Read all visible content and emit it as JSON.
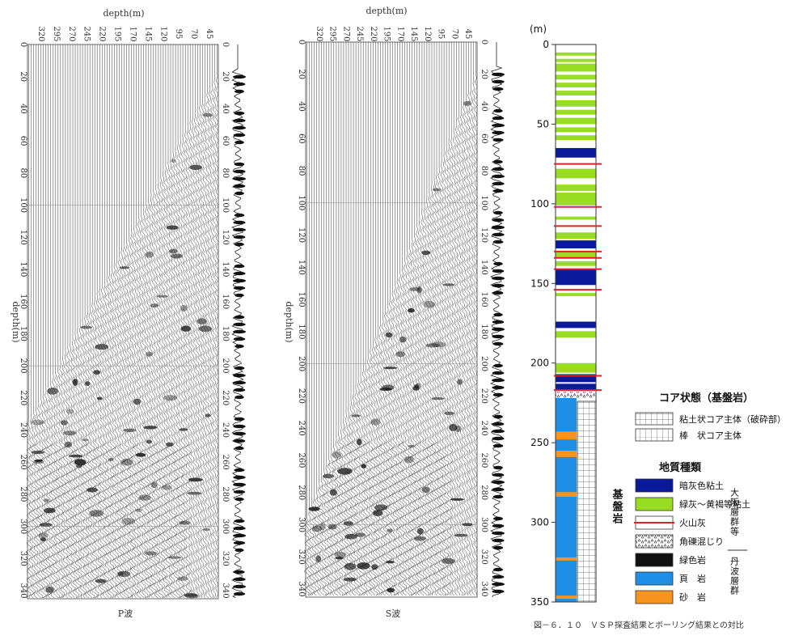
{
  "p_panel": {
    "top_axis_title": "depth(m)",
    "top_ticks": [
      "320",
      "295",
      "270",
      "245",
      "220",
      "195",
      "170",
      "145",
      "120",
      "95",
      "70",
      "45"
    ],
    "left_axis_title": "depth(m)",
    "left_ticks": [
      "0",
      "20",
      "40",
      "60",
      "80",
      "100",
      "120",
      "140",
      "160",
      "180",
      "200",
      "220",
      "240",
      "260",
      "280",
      "300",
      "320",
      "340"
    ],
    "right_ticks": [
      "0",
      "20",
      "40",
      "60",
      "80",
      "100",
      "120",
      "140",
      "160",
      "180",
      "200",
      "220",
      "240",
      "260",
      "280",
      "300",
      "320",
      "340"
    ],
    "caption": "P波"
  },
  "s_panel": {
    "top_axis_title": "depth(m)",
    "top_ticks": [
      "320",
      "295",
      "270",
      "245",
      "220",
      "195",
      "170",
      "145",
      "120",
      "95",
      "70",
      "45"
    ],
    "left_axis_title": "depth(m)",
    "left_ticks": [
      "0",
      "20",
      "40",
      "60",
      "80",
      "100",
      "120",
      "140",
      "160",
      "180",
      "200",
      "220",
      "240",
      "260",
      "280",
      "300",
      "320",
      "340"
    ],
    "right_ticks": [
      "0",
      "20",
      "40",
      "60",
      "80",
      "100",
      "120",
      "140",
      "160",
      "180",
      "200",
      "220",
      "240",
      "260",
      "280",
      "300",
      "320",
      "340"
    ],
    "caption": "S波"
  },
  "boring_log": {
    "unit_label": "(m)",
    "depth_ticks": [
      "0",
      "50",
      "100",
      "150",
      "200",
      "250",
      "300",
      "350"
    ],
    "depth_max": 350,
    "layers": [
      {
        "top": 0,
        "bottom": 2,
        "type": "white"
      },
      {
        "top": 5,
        "bottom": 7,
        "type": "green"
      },
      {
        "top": 9,
        "bottom": 11,
        "type": "green"
      },
      {
        "top": 12,
        "bottom": 17,
        "type": "green"
      },
      {
        "top": 19,
        "bottom": 22,
        "type": "green"
      },
      {
        "top": 24,
        "bottom": 27,
        "type": "green"
      },
      {
        "top": 29,
        "bottom": 32,
        "type": "green"
      },
      {
        "top": 35,
        "bottom": 39,
        "type": "green"
      },
      {
        "top": 41,
        "bottom": 44,
        "type": "green"
      },
      {
        "top": 46,
        "bottom": 50,
        "type": "green"
      },
      {
        "top": 52,
        "bottom": 55,
        "type": "green"
      },
      {
        "top": 57,
        "bottom": 60,
        "type": "green"
      },
      {
        "top": 65,
        "bottom": 71,
        "type": "blue_dark"
      },
      {
        "top": 78,
        "bottom": 84,
        "type": "green"
      },
      {
        "top": 88,
        "bottom": 92,
        "type": "green"
      },
      {
        "top": 93,
        "bottom": 101,
        "type": "green"
      },
      {
        "top": 108,
        "bottom": 110,
        "type": "green"
      },
      {
        "top": 118,
        "bottom": 122,
        "type": "green"
      },
      {
        "top": 123,
        "bottom": 128,
        "type": "blue_dark"
      },
      {
        "top": 130,
        "bottom": 134,
        "type": "green"
      },
      {
        "top": 136,
        "bottom": 139,
        "type": "green"
      },
      {
        "top": 141,
        "bottom": 151,
        "type": "blue_dark"
      },
      {
        "top": 156,
        "bottom": 158,
        "type": "green"
      },
      {
        "top": 174,
        "bottom": 178,
        "type": "blue_dark"
      },
      {
        "top": 180,
        "bottom": 184,
        "type": "green"
      },
      {
        "top": 200,
        "bottom": 206,
        "type": "green"
      },
      {
        "top": 207,
        "bottom": 212,
        "type": "blue_dark"
      },
      {
        "top": 213,
        "bottom": 217,
        "type": "blue_dark"
      },
      {
        "top": 218,
        "bottom": 222,
        "type": "breccia"
      },
      {
        "top": 222,
        "bottom": 350,
        "type": "shale"
      },
      {
        "top": 243,
        "bottom": 248,
        "type": "sandstone"
      },
      {
        "top": 255,
        "bottom": 259,
        "type": "sandstone"
      },
      {
        "top": 281,
        "bottom": 284,
        "type": "sandstone"
      },
      {
        "top": 322,
        "bottom": 324,
        "type": "sandstone"
      },
      {
        "top": 346,
        "bottom": 348,
        "type": "sandstone"
      }
    ],
    "ash_lines": [
      75,
      102,
      114,
      130,
      134,
      141,
      154,
      208,
      217
    ],
    "core_columns": [
      {
        "top": 222,
        "bottom": 350,
        "type": "grid"
      }
    ],
    "bedrock_label": "基盤岩"
  },
  "legend": {
    "core_title": "コア状態（基盤岩）",
    "core_items": [
      {
        "pattern": "grid",
        "label": "粘土状コア主体（破砕部）"
      },
      {
        "pattern": "stick",
        "label": "棒　状コア主体"
      }
    ],
    "geo_title": "地質種類",
    "geo_items": [
      {
        "type": "blue_dark",
        "label": "暗灰色粘土"
      },
      {
        "type": "green",
        "label": "緑灰～黄褐等粘土"
      },
      {
        "type": "ash",
        "label": "火山灰"
      },
      {
        "type": "breccia",
        "label": "角礫混じり"
      },
      {
        "type": "black",
        "label": "緑色岩"
      },
      {
        "type": "shale",
        "label": "頁　岩"
      },
      {
        "type": "sandstone",
        "label": "砂　岩"
      }
    ],
    "group_osaka": "大阪層群等",
    "group_tamba": "丹波層群"
  },
  "colors": {
    "blue_dark": "#0a1a9a",
    "green": "#99dd22",
    "ash": "#e0202a",
    "shale": "#1e8ee6",
    "sandstone": "#f7941d",
    "black": "#111111"
  },
  "figure_caption": "図－６．１０　ＶＳＰ探査結果とボーリング結果との対比"
}
